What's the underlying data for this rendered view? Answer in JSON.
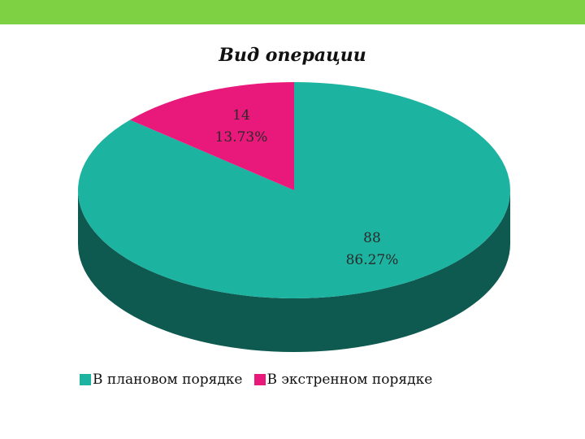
{
  "chart_data": {
    "type": "pie",
    "title": "Вид операции",
    "slices": [
      {
        "name": "В плановом порядке",
        "value": 88,
        "percent_label": "86.27%",
        "color": "#1cb3a1",
        "side_color": "#0e5a50"
      },
      {
        "name": "В экстренном порядке",
        "value": 14,
        "percent_label": "13.73%",
        "color": "#e8197a",
        "side_color": "#8a0f48"
      }
    ],
    "legend_position": "bottom",
    "style": "3d"
  },
  "colors": {
    "accent_bar": "#7ed143",
    "background": "#ffffff"
  }
}
